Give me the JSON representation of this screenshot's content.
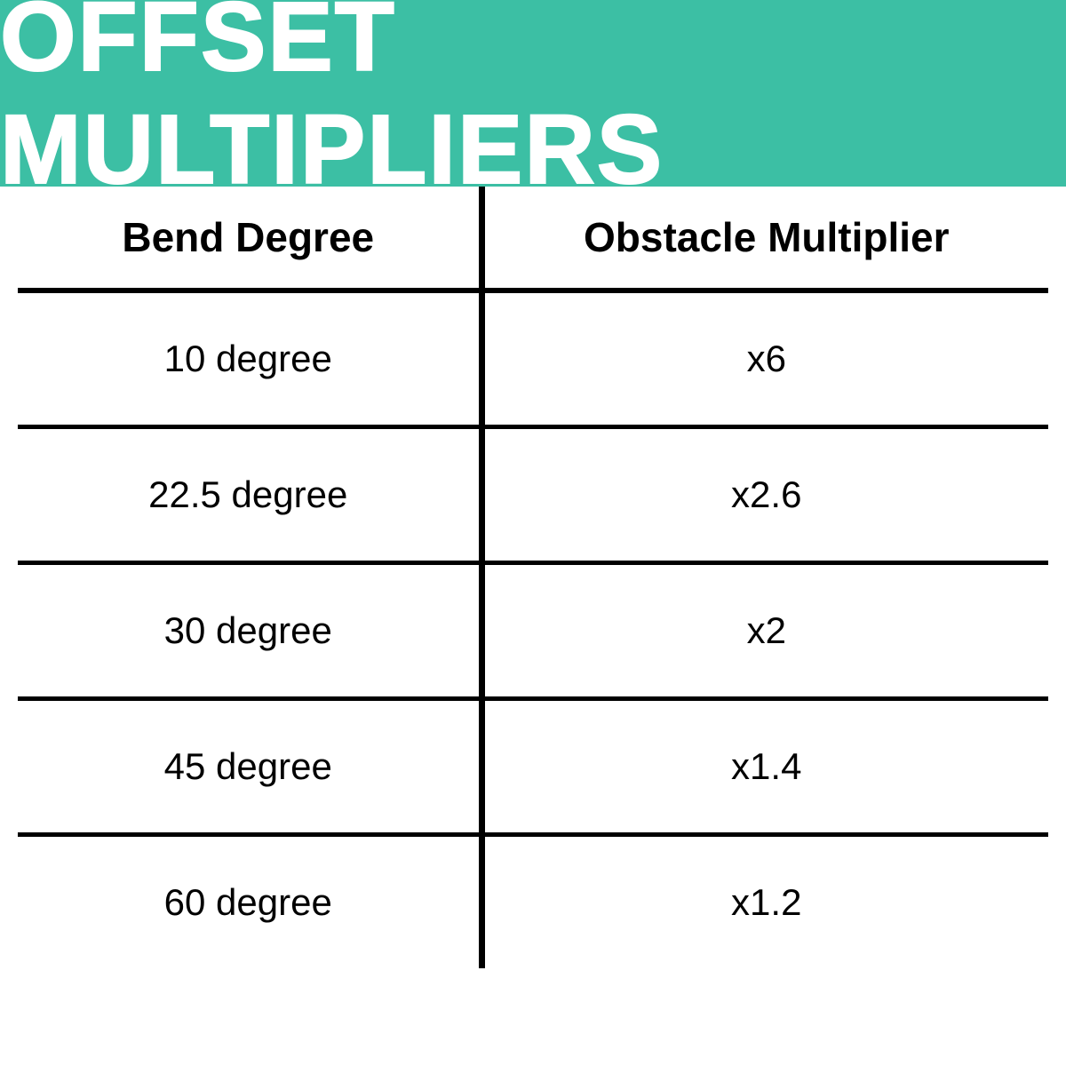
{
  "header": {
    "title": "OFFSET MULTIPLIERS",
    "background_color": "#3cbfa4",
    "text_color": "#ffffff",
    "title_fontsize": 110
  },
  "table": {
    "type": "table",
    "columns": [
      "Bend Degree",
      "Obstacle Multiplier"
    ],
    "rows": [
      [
        "10 degree",
        "x6"
      ],
      [
        "22.5 degree",
        "x2.6"
      ],
      [
        "30 degree",
        "x2"
      ],
      [
        "45 degree",
        "x1.4"
      ],
      [
        "60 degree",
        "x1.2"
      ]
    ],
    "header_fontsize": 46,
    "cell_fontsize": 42,
    "border_color": "#000000",
    "border_width": 5,
    "background_color": "#ffffff",
    "text_color": "#000000"
  }
}
